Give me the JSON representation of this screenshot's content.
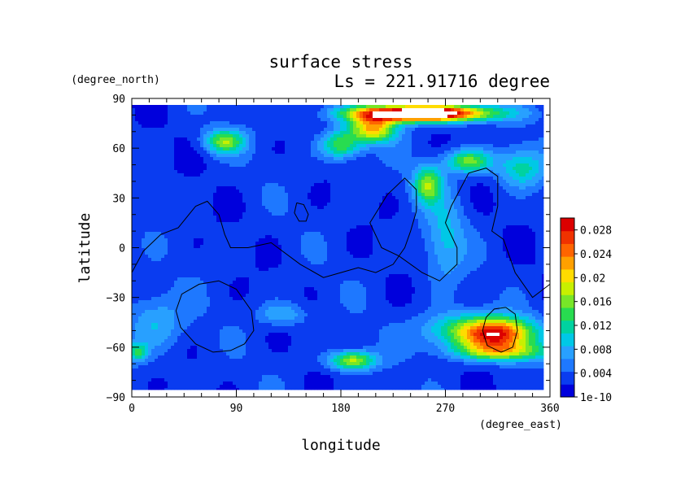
{
  "chart_data": {
    "type": "heatmap",
    "title": "surface stress",
    "subtitle": "Ls = 221.91716 degree",
    "xlabel": "longitude",
    "ylabel": "latitude",
    "x_unit": "(degree_east)",
    "y_unit": "(degree_north)",
    "xlim": [
      0,
      360
    ],
    "ylim": [
      -90,
      90
    ],
    "x_ticks": [
      "0",
      "90",
      "180",
      "270",
      "360"
    ],
    "y_ticks": [
      "90",
      "60",
      "30",
      "0",
      "−30",
      "−60",
      "−90"
    ],
    "x_tick_values": [
      0,
      90,
      180,
      270,
      360
    ],
    "y_tick_values": [
      90,
      60,
      30,
      0,
      -30,
      -60,
      -90
    ],
    "colorbar": {
      "min": 0,
      "max": 0.03,
      "labels": [
        "0.028",
        "0.024",
        "0.02",
        "0.016",
        "0.012",
        "0.008",
        "0.004",
        "1e-10"
      ],
      "label_values": [
        0.028,
        0.024,
        0.02,
        0.016,
        0.012,
        0.008,
        0.004,
        0
      ],
      "colors": [
        "#0000dc",
        "#0a3cf0",
        "#1e78ff",
        "#28a0ff",
        "#00c8e6",
        "#00d2a0",
        "#28dc50",
        "#78e628",
        "#c8f000",
        "#ffdc00",
        "#ffa000",
        "#ff6400",
        "#f03200",
        "#dc0000",
        "#ffffff"
      ]
    },
    "field_description": "Mostly low stress (~0.002-0.006) with a high-stress band near 80N around 210-290E exceeding 0.03, moderate stress patches at 50-60N, 20-50N near 270E, around 50S 290-340E and 70S near 190E.",
    "hotspots": [
      {
        "lon": 250,
        "lat": 81,
        "sigma_lon": 40,
        "sigma_lat": 3.5,
        "amp": 0.036
      },
      {
        "lon": 208,
        "lat": 72,
        "sigma_lon": 14,
        "sigma_lat": 6,
        "amp": 0.018
      },
      {
        "lon": 180,
        "lat": 62,
        "sigma_lon": 12,
        "sigma_lat": 6,
        "amp": 0.012
      },
      {
        "lon": 80,
        "lat": 64,
        "sigma_lon": 12,
        "sigma_lat": 5,
        "amp": 0.013
      },
      {
        "lon": 290,
        "lat": 52,
        "sigma_lon": 14,
        "sigma_lat": 5,
        "amp": 0.013
      },
      {
        "lon": 335,
        "lat": 48,
        "sigma_lon": 14,
        "sigma_lat": 8,
        "amp": 0.009
      },
      {
        "lon": 255,
        "lat": 38,
        "sigma_lon": 9,
        "sigma_lat": 8,
        "amp": 0.013
      },
      {
        "lon": 270,
        "lat": 5,
        "sigma_lon": 12,
        "sigma_lat": 18,
        "amp": 0.006
      },
      {
        "lon": 315,
        "lat": -52,
        "sigma_lon": 22,
        "sigma_lat": 7,
        "amp": 0.025
      },
      {
        "lon": 320,
        "lat": -63,
        "sigma_lon": 28,
        "sigma_lat": 4,
        "amp": 0.012
      },
      {
        "lon": 275,
        "lat": -50,
        "sigma_lon": 22,
        "sigma_lat": 8,
        "amp": 0.008
      },
      {
        "lon": 190,
        "lat": -68,
        "sigma_lon": 14,
        "sigma_lat": 4,
        "amp": 0.015
      },
      {
        "lon": 20,
        "lat": -45,
        "sigma_lon": 18,
        "sigma_lat": 12,
        "amp": 0.006
      },
      {
        "lon": 130,
        "lat": -40,
        "sigma_lon": 14,
        "sigma_lat": 5,
        "amp": 0.006
      },
      {
        "lon": 5,
        "lat": -63,
        "sigma_lon": 6,
        "sigma_lat": 4,
        "amp": 0.01
      }
    ],
    "background_level": 0.003,
    "contours": [
      {
        "name": "topography-line",
        "lon": [
          0,
          10,
          25,
          40,
          55,
          65,
          75,
          80,
          85,
          100,
          120,
          145,
          165,
          180,
          195,
          210,
          225,
          235,
          240,
          245,
          245,
          235,
          220,
          205,
          215,
          230,
          250,
          265,
          280,
          280,
          270,
          275,
          290,
          305,
          315,
          315,
          310,
          320,
          330,
          345,
          360
        ],
        "lat": [
          -15,
          -2,
          8,
          12,
          25,
          28,
          20,
          8,
          0,
          0,
          3,
          -10,
          -18,
          -15,
          -12,
          -15,
          -10,
          0,
          10,
          22,
          35,
          42,
          32,
          15,
          0,
          -5,
          -15,
          -20,
          -10,
          0,
          15,
          25,
          45,
          48,
          43,
          25,
          10,
          5,
          -15,
          -30,
          -22
        ]
      },
      {
        "name": "basin-outline-west",
        "lon": [
          75,
          90,
          103,
          105,
          97,
          85,
          70,
          55,
          42,
          38,
          43,
          58,
          75
        ],
        "lat": [
          -20,
          -25,
          -38,
          -50,
          -58,
          -62,
          -63,
          -58,
          -48,
          -38,
          -28,
          -22,
          -20
        ]
      },
      {
        "name": "crater-outline-east",
        "lon": [
          322,
          330,
          332,
          328,
          318,
          306,
          302,
          305,
          312,
          322
        ],
        "lat": [
          -36,
          -40,
          -50,
          -60,
          -63,
          -59,
          -50,
          -42,
          -37,
          -36
        ]
      },
      {
        "name": "small-loop",
        "lon": [
          142,
          148,
          152,
          150,
          144,
          140,
          142
        ],
        "lat": [
          27,
          26,
          20,
          16,
          16,
          21,
          27
        ]
      }
    ]
  }
}
